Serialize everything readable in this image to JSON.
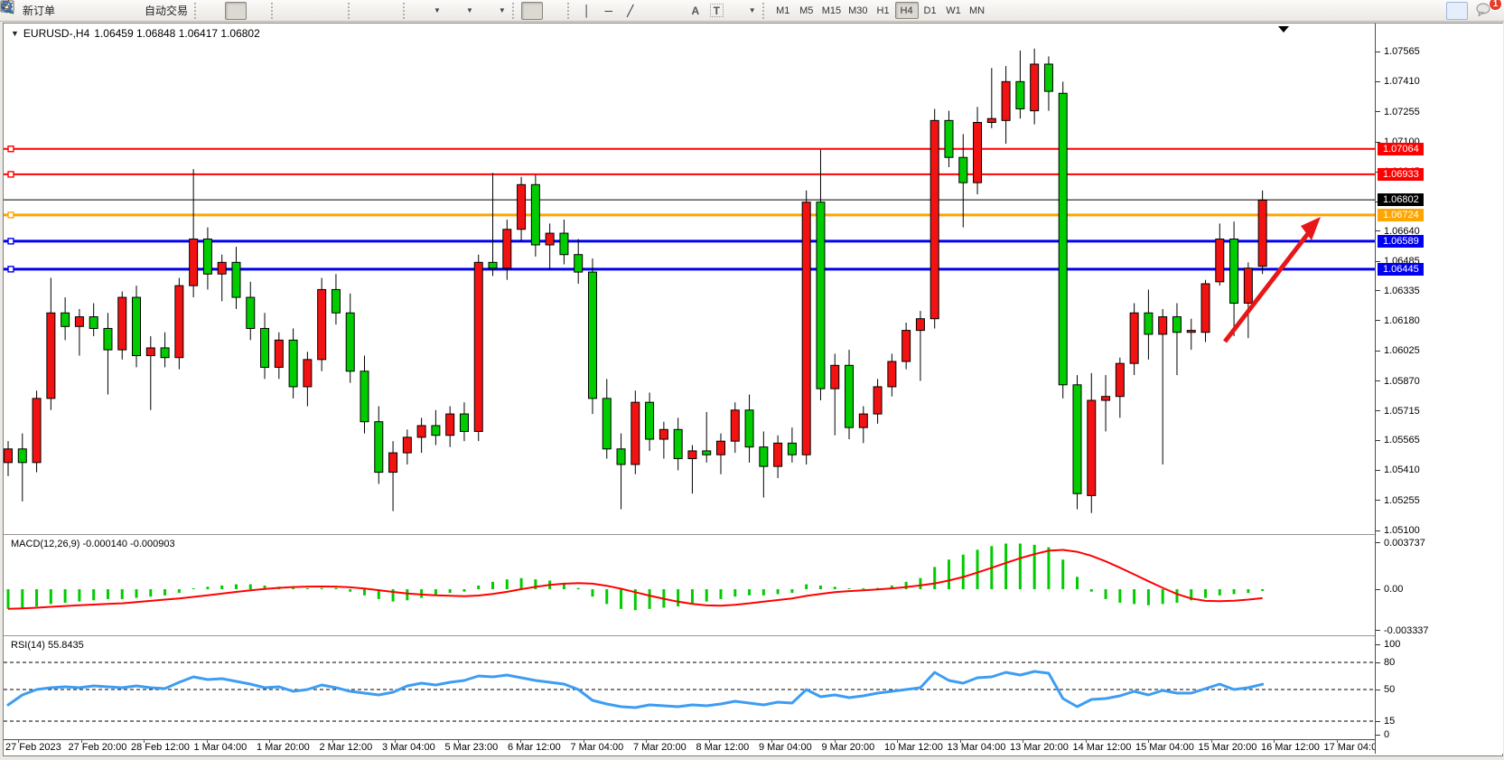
{
  "toolbar": {
    "new_order_label": "新订单",
    "auto_trading_label": "自动交易",
    "timeframes": [
      "M1",
      "M5",
      "M15",
      "M30",
      "H1",
      "H4",
      "D1",
      "W1",
      "MN"
    ],
    "active_timeframe": "H4",
    "notification_badge": "1",
    "drawing_glyphs": {
      "vertical_line": "│",
      "horizontal_line": "─",
      "trendline": "╱",
      "text": "A",
      "label": "T"
    }
  },
  "chart": {
    "title": "EURUSD-,H4",
    "ohlc": "1.06459 1.06848 1.06417 1.06802",
    "macd_label": "MACD(12,26,9) -0.000140 -0.000903",
    "rsi_label": "RSI(14) 55.8435"
  },
  "chart_data": {
    "type": "candlestick",
    "symbol": "EURUSD",
    "period": "H4",
    "ohlc_display": {
      "open": "1.06459",
      "high": "1.06848",
      "low": "1.06417",
      "close": "1.06802"
    },
    "y_range": {
      "top": 1.0762,
      "bottom": 1.0505
    },
    "price_axis_ticks": [
      "1.07565",
      "1.07410",
      "1.07255",
      "1.07100",
      "1.06945",
      "1.06790",
      "1.06640",
      "1.06485",
      "1.06335",
      "1.06180",
      "1.06025",
      "1.05870",
      "1.05715",
      "1.05565",
      "1.05410",
      "1.05255",
      "1.05100"
    ],
    "macd_axis_ticks": [
      "0.003737",
      "0.00",
      "-0.003337"
    ],
    "rsi_axis_ticks": [
      "100",
      "80",
      "50",
      "15",
      "0"
    ],
    "rsi_levels": [
      80,
      50,
      15
    ],
    "date_labels": [
      "27 Feb 2023",
      "27 Feb 20:00",
      "28 Feb 12:00",
      "1 Mar 04:00",
      "1 Mar 20:00",
      "2 Mar 12:00",
      "3 Mar 04:00",
      "5 Mar 23:00",
      "6 Mar 12:00",
      "7 Mar 04:00",
      "7 Mar 20:00",
      "8 Mar 12:00",
      "9 Mar 04:00",
      "9 Mar 20:00",
      "10 Mar 12:00",
      "13 Mar 04:00",
      "13 Mar 20:00",
      "14 Mar 12:00",
      "15 Mar 04:00",
      "15 Mar 20:00",
      "16 Mar 12:00",
      "17 Mar 04:00"
    ],
    "levels": [
      {
        "price": 1.07064,
        "label": "1.07064",
        "color": "#ff0000",
        "width": 2
      },
      {
        "price": 1.06933,
        "label": "1.06933",
        "color": "#ff0000",
        "width": 2
      },
      {
        "price": 1.06802,
        "label": "1.06802",
        "color": "#000000",
        "width": 1
      },
      {
        "price": 1.06724,
        "label": "1.06724",
        "color": "#ffa500",
        "width": 3
      },
      {
        "price": 1.06589,
        "label": "1.06589",
        "color": "#0000f0",
        "width": 3
      },
      {
        "price": 1.06445,
        "label": "1.06445",
        "color": "#0000f0",
        "width": 3
      }
    ],
    "candles": [
      [
        1.0545,
        1.0556,
        1.0538,
        1.0552
      ],
      [
        1.0552,
        1.056,
        1.0525,
        1.0545
      ],
      [
        1.0545,
        1.0582,
        1.054,
        1.0578
      ],
      [
        1.0578,
        1.064,
        1.0572,
        1.0622
      ],
      [
        1.0622,
        1.063,
        1.0608,
        1.0615
      ],
      [
        1.0615,
        1.0624,
        1.06,
        1.062
      ],
      [
        1.062,
        1.0627,
        1.061,
        1.0614
      ],
      [
        1.0614,
        1.0622,
        1.058,
        1.0603
      ],
      [
        1.0603,
        1.0633,
        1.0598,
        1.063
      ],
      [
        1.063,
        1.0636,
        1.0594,
        1.06
      ],
      [
        1.06,
        1.061,
        1.0572,
        1.0604
      ],
      [
        1.0604,
        1.0612,
        1.0594,
        1.0599
      ],
      [
        1.0599,
        1.064,
        1.0593,
        1.0636
      ],
      [
        1.0636,
        1.0696,
        1.063,
        1.066
      ],
      [
        1.066,
        1.0666,
        1.0634,
        1.0642
      ],
      [
        1.0642,
        1.0652,
        1.0628,
        1.0648
      ],
      [
        1.0648,
        1.0656,
        1.0624,
        1.063
      ],
      [
        1.063,
        1.0638,
        1.0608,
        1.0614
      ],
      [
        1.0614,
        1.0622,
        1.0588,
        1.0594
      ],
      [
        1.0594,
        1.0612,
        1.0588,
        1.0608
      ],
      [
        1.0608,
        1.0614,
        1.0578,
        1.0584
      ],
      [
        1.0584,
        1.0602,
        1.0574,
        1.0598
      ],
      [
        1.0598,
        1.064,
        1.0592,
        1.0634
      ],
      [
        1.0634,
        1.0642,
        1.0616,
        1.0622
      ],
      [
        1.0622,
        1.0632,
        1.0586,
        1.0592
      ],
      [
        1.0592,
        1.06,
        1.056,
        1.0566
      ],
      [
        1.0566,
        1.0574,
        1.0534,
        1.054
      ],
      [
        1.054,
        1.0556,
        1.052,
        1.055
      ],
      [
        1.055,
        1.0562,
        1.0544,
        1.0558
      ],
      [
        1.0558,
        1.0568,
        1.055,
        1.0564
      ],
      [
        1.0564,
        1.0572,
        1.0554,
        1.0559
      ],
      [
        1.0559,
        1.0574,
        1.0553,
        1.057
      ],
      [
        1.057,
        1.0576,
        1.0556,
        1.0561
      ],
      [
        1.0561,
        1.0652,
        1.0556,
        1.0648
      ],
      [
        1.0648,
        1.0694,
        1.0641,
        1.0645
      ],
      [
        1.0645,
        1.067,
        1.0639,
        1.0665
      ],
      [
        1.0665,
        1.0692,
        1.0659,
        1.0688
      ],
      [
        1.0688,
        1.0693,
        1.0651,
        1.0657
      ],
      [
        1.0657,
        1.0668,
        1.0644,
        1.0663
      ],
      [
        1.0663,
        1.067,
        1.0647,
        1.0652
      ],
      [
        1.0652,
        1.066,
        1.0637,
        1.0643
      ],
      [
        1.0643,
        1.065,
        1.057,
        1.0578
      ],
      [
        1.0578,
        1.0588,
        1.0547,
        1.0552
      ],
      [
        1.0552,
        1.056,
        1.0521,
        1.0544
      ],
      [
        1.0544,
        1.0582,
        1.0539,
        1.0576
      ],
      [
        1.0576,
        1.0581,
        1.0551,
        1.0557
      ],
      [
        1.0557,
        1.0566,
        1.0547,
        1.0562
      ],
      [
        1.0562,
        1.0568,
        1.0541,
        1.0547
      ],
      [
        1.0547,
        1.0554,
        1.0529,
        1.0551
      ],
      [
        1.0551,
        1.0571,
        1.0545,
        1.0549
      ],
      [
        1.0549,
        1.056,
        1.0539,
        1.0556
      ],
      [
        1.0556,
        1.0576,
        1.055,
        1.0572
      ],
      [
        1.0572,
        1.058,
        1.0545,
        1.0553
      ],
      [
        1.0553,
        1.0561,
        1.0527,
        1.0543
      ],
      [
        1.0543,
        1.0559,
        1.0537,
        1.0555
      ],
      [
        1.0555,
        1.0563,
        1.0545,
        1.0549
      ],
      [
        1.0549,
        1.0685,
        1.0544,
        1.0679
      ],
      [
        1.0679,
        1.0706,
        1.0577,
        1.0583
      ],
      [
        1.0583,
        1.0601,
        1.0559,
        1.0595
      ],
      [
        1.0595,
        1.0603,
        1.0557,
        1.0563
      ],
      [
        1.0563,
        1.0574,
        1.0555,
        1.057
      ],
      [
        1.057,
        1.0588,
        1.0565,
        1.0584
      ],
      [
        1.0584,
        1.0601,
        1.0579,
        1.0597
      ],
      [
        1.0597,
        1.0617,
        1.0593,
        1.0613
      ],
      [
        1.0613,
        1.0623,
        1.0587,
        1.0619
      ],
      [
        1.0619,
        1.0727,
        1.0614,
        1.0721
      ],
      [
        1.0721,
        1.0726,
        1.0697,
        1.0702
      ],
      [
        1.0702,
        1.0714,
        1.0666,
        1.0689
      ],
      [
        1.0689,
        1.0728,
        1.0683,
        1.072
      ],
      [
        1.072,
        1.0748,
        1.0717,
        1.0722
      ],
      [
        1.0721,
        1.0749,
        1.0709,
        1.0741
      ],
      [
        1.0741,
        1.0757,
        1.0722,
        1.0727
      ],
      [
        1.0726,
        1.0758,
        1.0719,
        1.075
      ],
      [
        1.075,
        1.0754,
        1.0726,
        1.0736
      ],
      [
        1.0735,
        1.0741,
        1.0578,
        1.0585
      ],
      [
        1.0585,
        1.059,
        1.0521,
        1.0529
      ],
      [
        1.0528,
        1.0591,
        1.0519,
        1.0577
      ],
      [
        1.0577,
        1.059,
        1.0561,
        1.0579
      ],
      [
        1.0579,
        1.0599,
        1.0568,
        1.0596
      ],
      [
        1.0596,
        1.0627,
        1.059,
        1.0622
      ],
      [
        1.0622,
        1.0634,
        1.0598,
        1.0611
      ],
      [
        1.0611,
        1.0624,
        1.0544,
        1.062
      ],
      [
        1.062,
        1.0627,
        1.059,
        1.0612
      ],
      [
        1.0612,
        1.0619,
        1.0603,
        1.0613
      ],
      [
        1.0612,
        1.0639,
        1.0607,
        1.0637
      ],
      [
        1.0638,
        1.0668,
        1.0636,
        1.066
      ],
      [
        1.066,
        1.0669,
        1.061,
        1.0627
      ],
      [
        1.0627,
        1.0648,
        1.0609,
        1.0645
      ],
      [
        1.0646,
        1.0685,
        1.0642,
        1.068
      ]
    ],
    "macd": {
      "params": "12,26,9",
      "current": "-0.000140",
      "signal_current": "-0.000903",
      "signal_periods": 9,
      "histogram": [
        -0.0016,
        -0.0015,
        -0.0014,
        -0.0012,
        -0.0011,
        -0.001,
        -0.0009,
        -0.0008,
        -0.0008,
        -0.0007,
        -0.0006,
        -0.0005,
        -0.0003,
        0.0,
        0.0002,
        0.0003,
        0.0004,
        0.0004,
        0.0003,
        0.0002,
        0.0001,
        0.0,
        0.0001,
        0.0001,
        -0.0002,
        -0.0005,
        -0.0008,
        -0.001,
        -0.0009,
        -0.0007,
        -0.0005,
        -0.0003,
        -0.0002,
        0.0003,
        0.0006,
        0.0008,
        0.0009,
        0.0008,
        0.0007,
        0.0004,
        0.0001,
        -0.0006,
        -0.0012,
        -0.0016,
        -0.0017,
        -0.0016,
        -0.0015,
        -0.0014,
        -0.0012,
        -0.001,
        -0.0008,
        -0.0006,
        -0.0005,
        -0.0005,
        -0.0004,
        -0.0003,
        0.0004,
        0.0003,
        0.0002,
        0.0,
        0.0,
        0.0001,
        0.0003,
        0.0006,
        0.0009,
        0.0018,
        0.0024,
        0.0028,
        0.0032,
        0.0035,
        0.0037,
        0.0037,
        0.0036,
        0.0034,
        0.0024,
        0.001,
        -0.0002,
        -0.0008,
        -0.0011,
        -0.0012,
        -0.0013,
        -0.0012,
        -0.0011,
        -0.0009,
        -0.0007,
        -0.0005,
        -0.0004,
        -0.0003,
        -0.00014
      ]
    },
    "rsi": {
      "period": 14,
      "current": 55.8435,
      "values": [
        33,
        44,
        50,
        52,
        53,
        52,
        54,
        53,
        52,
        54,
        52,
        51,
        58,
        64,
        61,
        62,
        59,
        56,
        52,
        53,
        48,
        50,
        55,
        52,
        48,
        46,
        44,
        47,
        54,
        57,
        55,
        58,
        60,
        65,
        64,
        66,
        63,
        60,
        58,
        56,
        50,
        38,
        34,
        31,
        30,
        33,
        32,
        31,
        33,
        32,
        34,
        37,
        35,
        33,
        36,
        35,
        50,
        42,
        44,
        41,
        43,
        46,
        48,
        50,
        52,
        69,
        60,
        57,
        63,
        64,
        69,
        66,
        70,
        68,
        40,
        31,
        39,
        40,
        43,
        48,
        44,
        49,
        46,
        46,
        51,
        56,
        50,
        52,
        55.8
      ]
    },
    "annotation_arrow": {
      "from_price": 1.0606,
      "to_price": 1.0669,
      "color": "#e81717"
    },
    "colors": {
      "up": "#f21212",
      "down": "#00cc00",
      "outline": "#000000",
      "macd_hist": "#00cc00",
      "macd_signal": "#ff0000",
      "rsi_line": "#3d9df3"
    }
  }
}
